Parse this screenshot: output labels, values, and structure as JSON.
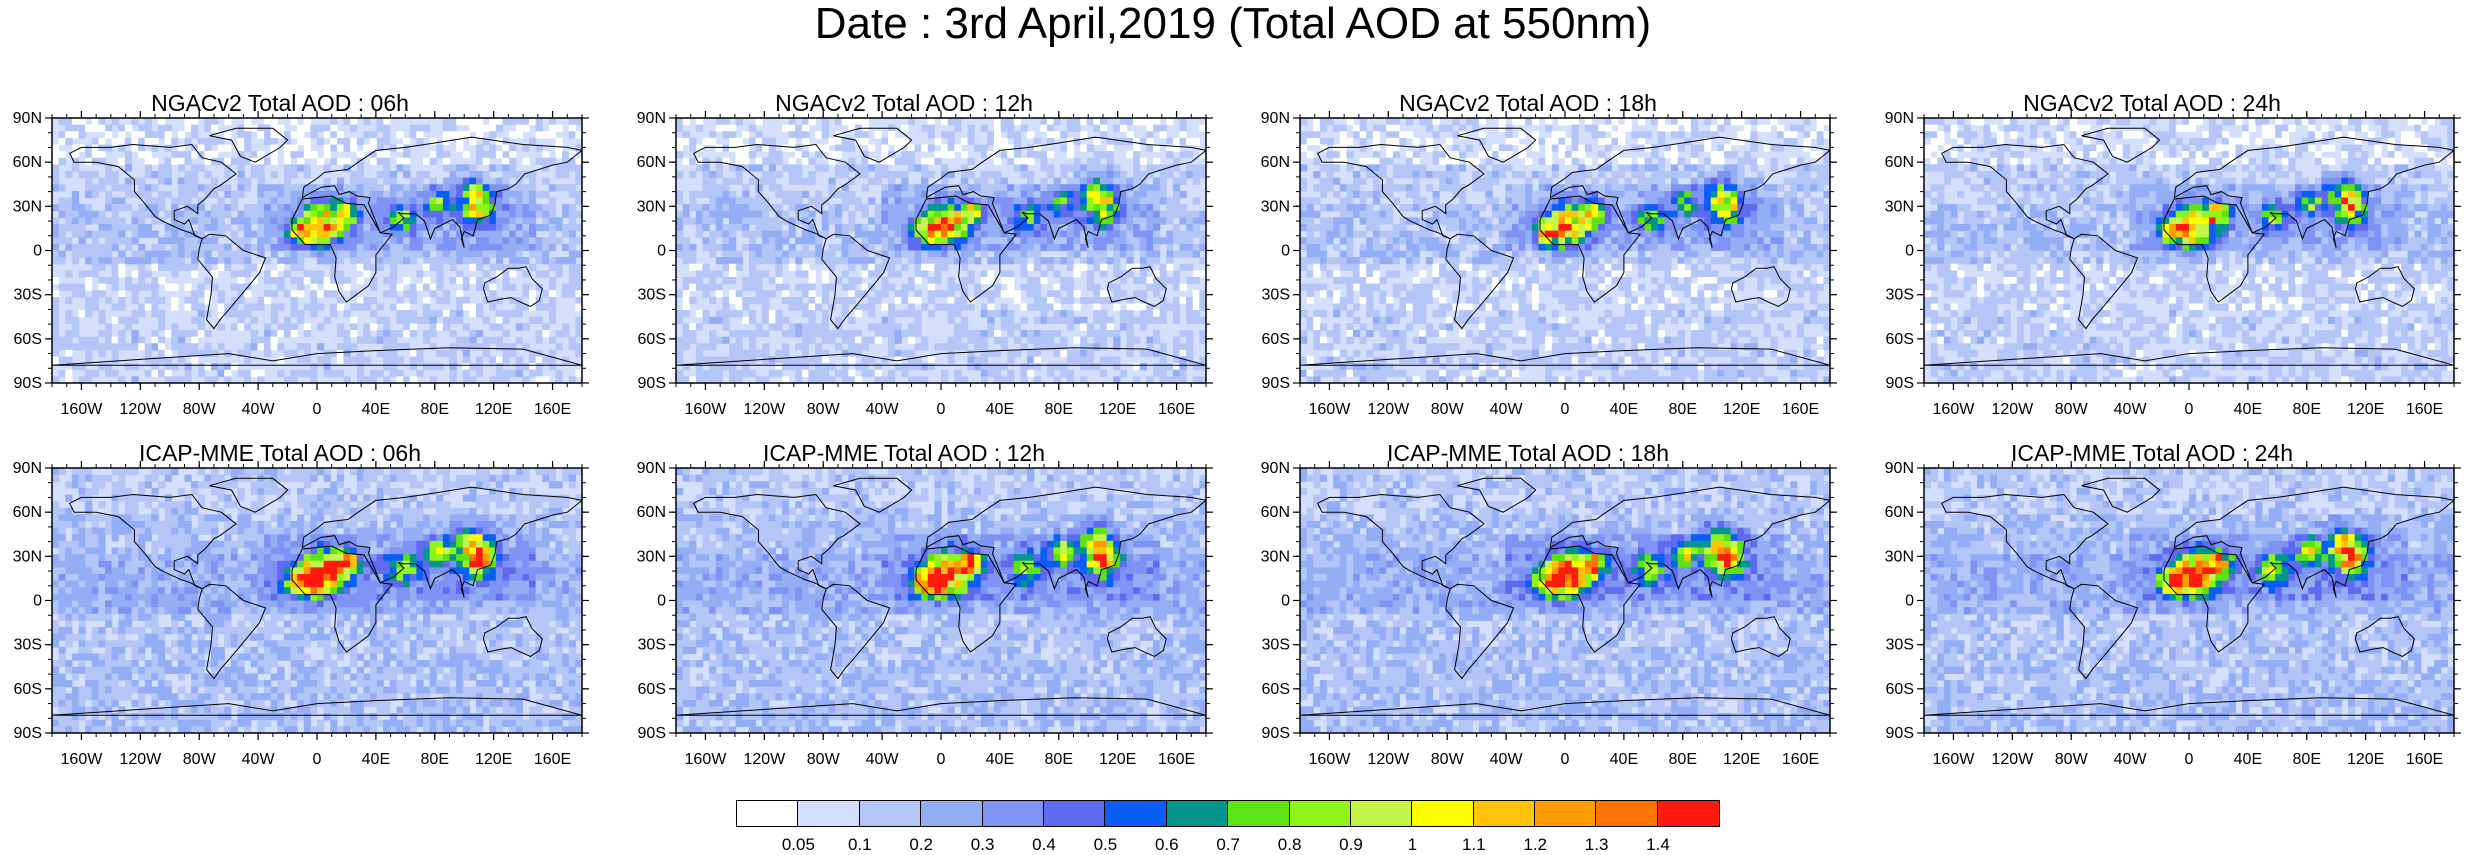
{
  "title": "Date : 3rd April,2019 (Total AOD at 550nm)",
  "panels": [
    {
      "title": "NGACv2 Total AOD : 06h",
      "model": "ngac"
    },
    {
      "title": "NGACv2 Total AOD : 12h",
      "model": "ngac"
    },
    {
      "title": "NGACv2 Total AOD : 18h",
      "model": "ngac"
    },
    {
      "title": "NGACv2 Total AOD : 24h",
      "model": "ngac"
    },
    {
      "title": "ICAP-MME Total AOD : 06h",
      "model": "icap"
    },
    {
      "title": "ICAP-MME Total AOD : 12h",
      "model": "icap"
    },
    {
      "title": "ICAP-MME Total AOD : 18h",
      "model": "icap"
    },
    {
      "title": "ICAP-MME Total AOD : 24h",
      "model": "icap"
    }
  ],
  "axes": {
    "lat_ticks": [
      "90N",
      "60N",
      "30N",
      "0",
      "30S",
      "60S",
      "90S"
    ],
    "lon_ticks": [
      "160W",
      "120W",
      "80W",
      "40W",
      "0",
      "40E",
      "80E",
      "120E",
      "160E"
    ],
    "lon_values": [
      -160,
      -120,
      -80,
      -40,
      0,
      40,
      80,
      120,
      160
    ],
    "lat_values": [
      90,
      60,
      30,
      0,
      -30,
      -60,
      -90
    ]
  },
  "colorbar": {
    "levels": [
      "0.05",
      "0.1",
      "0.2",
      "0.3",
      "0.4",
      "0.5",
      "0.6",
      "0.7",
      "0.8",
      "0.9",
      "1",
      "1.1",
      "1.2",
      "1.3",
      "1.4"
    ],
    "colors": [
      "#ffffff",
      "#d4e0fb",
      "#b3c6f7",
      "#93aef5",
      "#7f93f4",
      "#5f6af0",
      "#0a5ef5",
      "#04958c",
      "#5de314",
      "#8df51c",
      "#c6f549",
      "#ffff00",
      "#ffc30a",
      "#ff9c00",
      "#ff7400",
      "#ff1a10"
    ]
  }
}
